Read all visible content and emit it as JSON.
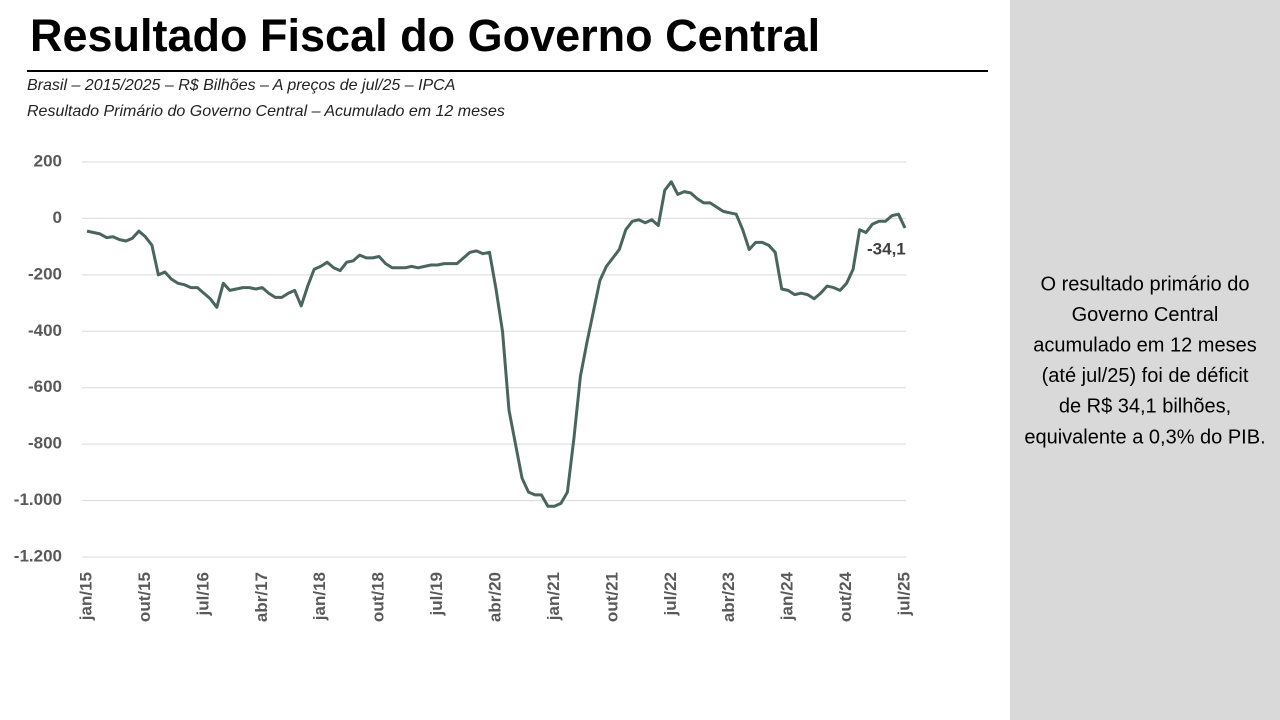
{
  "chart_data": {
    "type": "line",
    "title": "Resultado Fiscal do Governo Central",
    "subtitle": [
      "Brasil – 2015/2025 – R$ Bilhões – A preços de jul/25 – IPCA",
      "Resultado Primário do Governo Central – Acumulado em 12 meses"
    ],
    "categories": [
      "jan/15",
      null,
      null,
      null,
      null,
      null,
      null,
      null,
      null,
      "out/15",
      null,
      null,
      null,
      null,
      null,
      null,
      null,
      null,
      "jul/16",
      null,
      null,
      null,
      null,
      null,
      null,
      null,
      null,
      "abr/17",
      null,
      null,
      null,
      null,
      null,
      null,
      null,
      null,
      "jan/18",
      null,
      null,
      null,
      null,
      null,
      null,
      null,
      null,
      "out/18",
      null,
      null,
      null,
      null,
      null,
      null,
      null,
      null,
      "jul/19",
      null,
      null,
      null,
      null,
      null,
      null,
      null,
      null,
      "abr/20",
      null,
      null,
      null,
      null,
      null,
      null,
      null,
      null,
      "jan/21",
      null,
      null,
      null,
      null,
      null,
      null,
      null,
      null,
      "out/21",
      null,
      null,
      null,
      null,
      null,
      null,
      null,
      null,
      "jul/22",
      null,
      null,
      null,
      null,
      null,
      null,
      null,
      null,
      "abr/23",
      null,
      null,
      null,
      null,
      null,
      null,
      null,
      null,
      "jan/24",
      null,
      null,
      null,
      null,
      null,
      null,
      null,
      null,
      "out/24",
      null,
      null,
      null,
      null,
      null,
      null,
      null,
      null,
      "jul/25"
    ],
    "values": [
      -45,
      -50,
      -55,
      -68,
      -65,
      -75,
      -80,
      -70,
      -45,
      -65,
      -95,
      -200,
      -190,
      -215,
      -230,
      -235,
      -245,
      -245,
      -265,
      -285,
      -315,
      -230,
      -255,
      -250,
      -245,
      -245,
      -250,
      -245,
      -265,
      -280,
      -280,
      -265,
      -255,
      -310,
      -240,
      -180,
      -170,
      -155,
      -175,
      -185,
      -155,
      -150,
      -130,
      -140,
      -140,
      -135,
      -160,
      -175,
      -175,
      -175,
      -170,
      -175,
      -170,
      -165,
      -165,
      -160,
      -160,
      -160,
      -140,
      -120,
      -115,
      -125,
      -120,
      -250,
      -400,
      -680,
      -800,
      -920,
      -970,
      -980,
      -980,
      -1020,
      -1020,
      -1010,
      -970,
      -780,
      -560,
      -440,
      -330,
      -220,
      -170,
      -140,
      -110,
      -40,
      -10,
      -5,
      -15,
      -5,
      -25,
      100,
      130,
      85,
      95,
      90,
      70,
      55,
      55,
      40,
      25,
      20,
      15,
      -40,
      -110,
      -85,
      -85,
      -95,
      -120,
      -250,
      -255,
      -270,
      -265,
      -270,
      -285,
      -265,
      -240,
      -245,
      -255,
      -230,
      -180,
      -40,
      -50,
      -20,
      -10,
      -10,
      10,
      15,
      -34.1
    ],
    "color": "#4a645e",
    "end_label": "-34,1",
    "ylim": [
      -1200,
      200
    ],
    "yticks": [
      200,
      0,
      -200,
      -400,
      -600,
      -800,
      {
        "value": -1000,
        "label": "-1.000"
      },
      {
        "value": -1200,
        "label": "-1.200"
      }
    ],
    "grid": true
  },
  "side_note": [
    "O resultado primário do",
    "Governo Central",
    "acumulado em 12 meses",
    "(até jul/25) foi de déficit",
    "de R$ 34,1 bilhões,",
    "equivalente a 0,3% do PIB."
  ]
}
